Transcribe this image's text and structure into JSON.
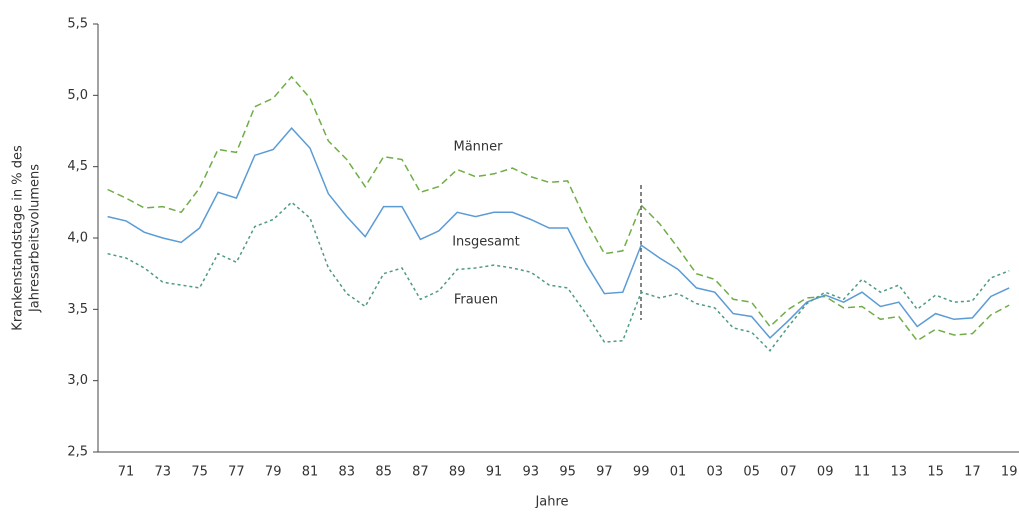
{
  "chart_data": {
    "type": "line",
    "ylabel": [
      "Krankenstandstage in % des",
      "Jahresarbeitsvolumens"
    ],
    "xlabel": "Jahre",
    "categories": [
      null,
      "71",
      null,
      "73",
      null,
      "75",
      null,
      "77",
      null,
      "79",
      null,
      "81",
      null,
      "83",
      null,
      "85",
      null,
      "87",
      null,
      "89",
      null,
      "91",
      null,
      "93",
      null,
      "95",
      null,
      "97",
      null,
      "99",
      null,
      "01",
      null,
      "03",
      null,
      "05",
      null,
      "07",
      null,
      "09",
      null,
      "11",
      null,
      "13",
      null,
      "15",
      null,
      "17",
      null,
      "19"
    ],
    "series": [
      {
        "name": "Männer",
        "color": "#70ad47",
        "dash": "7 4",
        "values": [
          4.34,
          4.28,
          4.21,
          4.22,
          4.18,
          4.35,
          4.62,
          4.6,
          4.92,
          4.98,
          5.13,
          4.98,
          4.68,
          4.55,
          4.36,
          4.57,
          4.55,
          4.32,
          4.36,
          4.48,
          4.43,
          4.45,
          4.49,
          4.43,
          4.39,
          4.4,
          4.12,
          3.89,
          3.91,
          4.23,
          4.1,
          3.93,
          3.75,
          3.71,
          3.57,
          3.55,
          3.38,
          3.5,
          3.58,
          3.59,
          3.51,
          3.52,
          3.43,
          3.45,
          3.28,
          3.36,
          3.32,
          3.33,
          3.46,
          3.53
        ]
      },
      {
        "name": "Insgesamt",
        "color": "#5b9bd5",
        "dash": "none",
        "values": [
          4.15,
          4.12,
          4.04,
          4.0,
          3.97,
          4.07,
          4.32,
          4.28,
          4.58,
          4.62,
          4.77,
          4.63,
          4.31,
          4.15,
          4.01,
          4.22,
          4.22,
          3.99,
          4.05,
          4.18,
          4.15,
          4.18,
          4.18,
          4.13,
          4.07,
          4.07,
          3.82,
          3.61,
          3.62,
          3.95,
          3.86,
          3.78,
          3.65,
          3.62,
          3.47,
          3.45,
          3.3,
          3.42,
          3.55,
          3.6,
          3.55,
          3.62,
          3.52,
          3.55,
          3.38,
          3.47,
          3.43,
          3.44,
          3.59,
          3.65
        ]
      },
      {
        "name": "Frauen",
        "color": "#4e9a82",
        "dash": "3 3",
        "values": [
          3.89,
          3.86,
          3.79,
          3.69,
          3.67,
          3.65,
          3.89,
          3.83,
          4.08,
          4.13,
          4.25,
          4.14,
          3.79,
          3.61,
          3.52,
          3.75,
          3.79,
          3.57,
          3.63,
          3.78,
          3.79,
          3.81,
          3.79,
          3.76,
          3.67,
          3.65,
          3.47,
          3.27,
          3.28,
          3.62,
          3.58,
          3.61,
          3.54,
          3.51,
          3.37,
          3.34,
          3.21,
          3.38,
          3.54,
          3.62,
          3.57,
          3.71,
          3.62,
          3.67,
          3.5,
          3.6,
          3.55,
          3.56,
          3.72,
          3.77
        ]
      }
    ],
    "ylim": [
      2.5,
      5.5
    ],
    "yticks": [
      {
        "value": 2.5,
        "label": "2,5"
      },
      {
        "value": 3.0,
        "label": "3,0"
      },
      {
        "value": 3.5,
        "label": "3,5"
      },
      {
        "value": 4.0,
        "label": "4,0"
      },
      {
        "value": 4.5,
        "label": "4,5"
      },
      {
        "value": 5.0,
        "label": "5,0"
      },
      {
        "value": 5.5,
        "label": "5,5"
      }
    ]
  }
}
